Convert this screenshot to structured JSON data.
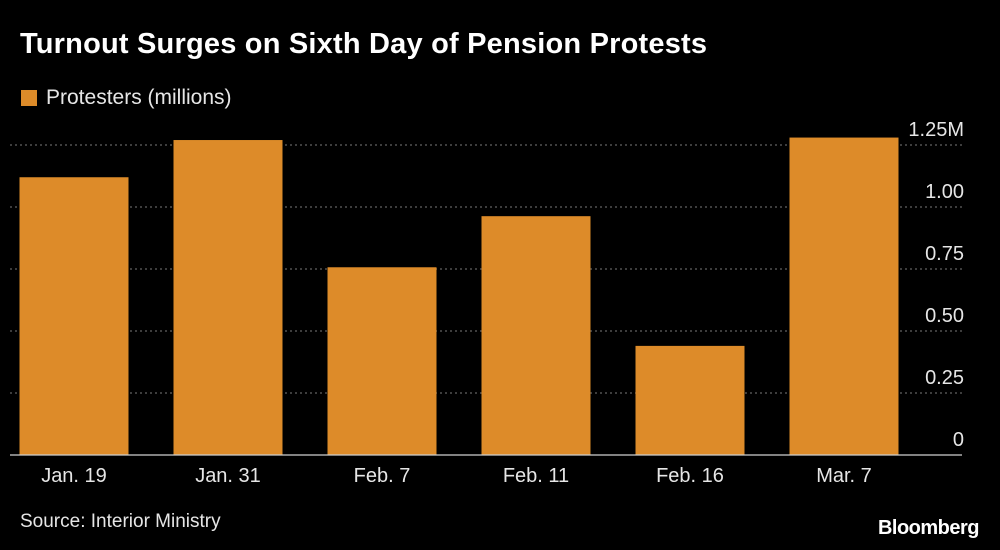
{
  "chart_data": {
    "type": "bar",
    "title": "Turnout Surges on Sixth Day of Pension Protests",
    "categories": [
      "Jan. 19",
      "Jan. 31",
      "Feb. 7",
      "Feb. 11",
      "Feb. 16",
      "Mar. 7"
    ],
    "series": [
      {
        "name": "Protesters (millions)",
        "values": [
          1.12,
          1.27,
          0.757,
          0.963,
          0.44,
          1.28
        ]
      }
    ],
    "y_ticks": [
      0,
      0.25,
      0.5,
      0.75,
      1.0,
      1.25
    ],
    "y_tick_labels": [
      "0",
      "0.25",
      "0.50",
      "0.75",
      "1.00",
      "1.25M"
    ],
    "ylim": [
      0,
      1.25
    ],
    "y_axis_position": "right",
    "grid": true,
    "legend_position": "top-left",
    "bar_color": "#dd8b29",
    "source": "Source: Interior Ministry"
  },
  "brand": "Bloomberg",
  "colors": {
    "background": "#000000",
    "text": "#ffffff",
    "grid": "#7a7a7a"
  }
}
